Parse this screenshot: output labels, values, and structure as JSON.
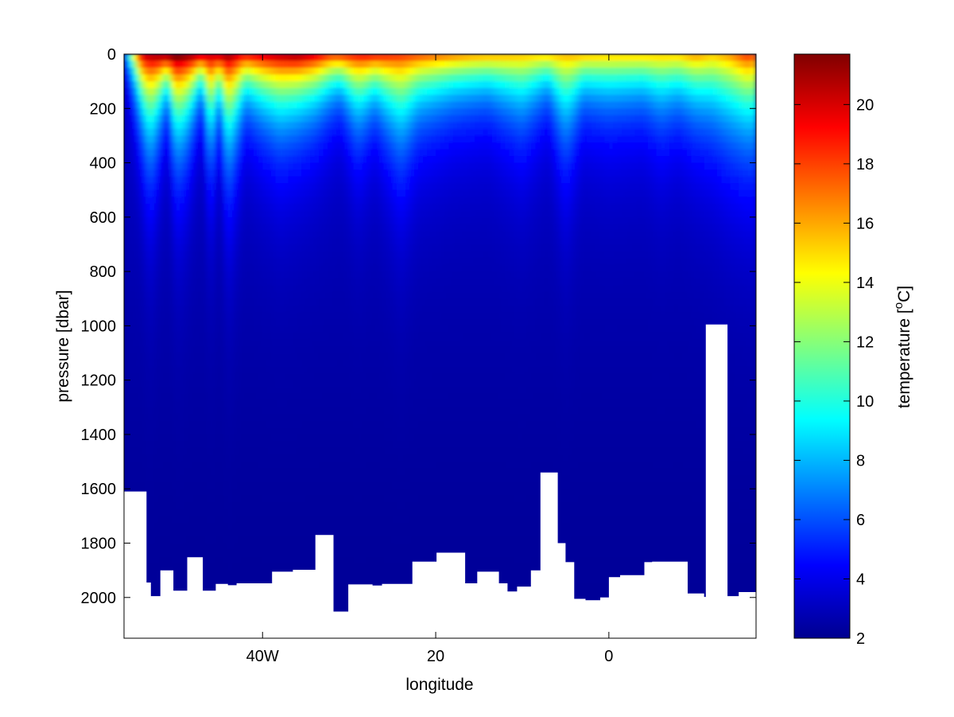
{
  "chart_data": [
    {
      "type": "heatmap",
      "kind": "filled-contour ocean section",
      "title": "",
      "xlabel": "longitude",
      "ylabel": "pressure [dbar]",
      "xlim": [
        -56,
        17
      ],
      "ylim": [
        2150,
        0
      ],
      "y_reversed": true,
      "grid": false,
      "colormap": "jet",
      "x_ticks": [
        {
          "value": -40,
          "label": "40W"
        },
        {
          "value": -20,
          "label": "20"
        },
        {
          "value": 0,
          "label": "0"
        }
      ],
      "y_ticks": [
        {
          "value": 0,
          "label": "0"
        },
        {
          "value": 200,
          "label": "200"
        },
        {
          "value": 400,
          "label": "400"
        },
        {
          "value": 600,
          "label": "600"
        },
        {
          "value": 800,
          "label": "800"
        },
        {
          "value": 1000,
          "label": "1000"
        },
        {
          "value": 1200,
          "label": "1200"
        },
        {
          "value": 1400,
          "label": "1400"
        },
        {
          "value": 1600,
          "label": "1600"
        },
        {
          "value": 1800,
          "label": "1800"
        },
        {
          "value": 2000,
          "label": "2000"
        }
      ],
      "surface_max_temperature": [
        [
          -56,
          5
        ],
        [
          -54,
          19
        ],
        [
          -52,
          20
        ],
        [
          -50,
          21
        ],
        [
          -48,
          20
        ],
        [
          -46,
          19
        ],
        [
          -44,
          20
        ],
        [
          -42,
          18
        ],
        [
          -40,
          19
        ],
        [
          -36,
          20
        ],
        [
          -34,
          19
        ],
        [
          -32,
          17
        ],
        [
          -28,
          18
        ],
        [
          -24,
          17
        ],
        [
          -20,
          16
        ],
        [
          -16,
          15
        ],
        [
          -12,
          14.5
        ],
        [
          -8,
          14
        ],
        [
          -4,
          14.5
        ],
        [
          0,
          14
        ],
        [
          4,
          14
        ],
        [
          8,
          14
        ],
        [
          10,
          15
        ],
        [
          12,
          14
        ],
        [
          14,
          15
        ],
        [
          16,
          17
        ],
        [
          17,
          16
        ]
      ],
      "thermocline_depth_dbar": [
        [
          -56,
          60
        ],
        [
          -54,
          300
        ],
        [
          -53,
          450
        ],
        [
          -51,
          180
        ],
        [
          -50,
          420
        ],
        [
          -49,
          380
        ],
        [
          -47,
          160
        ],
        [
          -46,
          440
        ],
        [
          -45,
          200
        ],
        [
          -44,
          480
        ],
        [
          -42,
          230
        ],
        [
          -40,
          290
        ],
        [
          -38,
          340
        ],
        [
          -34,
          280
        ],
        [
          -31,
          200
        ],
        [
          -29,
          330
        ],
        [
          -27,
          240
        ],
        [
          -24,
          420
        ],
        [
          -22,
          300
        ],
        [
          -18,
          250
        ],
        [
          -14,
          230
        ],
        [
          -10,
          330
        ],
        [
          -7,
          210
        ],
        [
          -5,
          420
        ],
        [
          -3,
          240
        ],
        [
          0,
          270
        ],
        [
          4,
          250
        ],
        [
          6,
          310
        ],
        [
          8,
          270
        ],
        [
          11,
          330
        ],
        [
          14,
          400
        ],
        [
          17,
          420
        ]
      ],
      "bottom_pressure_dbar": [
        [
          -56.0,
          1610
        ],
        [
          -53.4,
          1945
        ],
        [
          -52.9,
          1995
        ],
        [
          -51.8,
          1900
        ],
        [
          -50.3,
          1975
        ],
        [
          -48.7,
          1852
        ],
        [
          -46.9,
          1975
        ],
        [
          -45.4,
          1950
        ],
        [
          -44.0,
          1955
        ],
        [
          -43.0,
          1948
        ],
        [
          -38.9,
          1905
        ],
        [
          -36.5,
          1898
        ],
        [
          -33.9,
          1770
        ],
        [
          -31.8,
          2052
        ],
        [
          -30.1,
          1952
        ],
        [
          -28.8,
          1952
        ],
        [
          -27.3,
          1956
        ],
        [
          -26.2,
          1950
        ],
        [
          -22.7,
          1868
        ],
        [
          -20.6,
          1868
        ],
        [
          -19.9,
          1835
        ],
        [
          -16.6,
          1948
        ],
        [
          -15.2,
          1905
        ],
        [
          -12.7,
          1948
        ],
        [
          -11.7,
          1978
        ],
        [
          -10.6,
          1960
        ],
        [
          -9.0,
          1900
        ],
        [
          -7.9,
          1540
        ],
        [
          -5.9,
          1800
        ],
        [
          -5.0,
          1870
        ],
        [
          -4.0,
          2005
        ],
        [
          -2.7,
          2010
        ],
        [
          -1.0,
          2000
        ],
        [
          0.0,
          1925
        ],
        [
          1.3,
          1918
        ],
        [
          4.1,
          1870
        ],
        [
          5.0,
          1868
        ],
        [
          9.1,
          1985
        ],
        [
          11.0,
          1998
        ],
        [
          11.2,
          995
        ],
        [
          13.7,
          1995
        ],
        [
          15.0,
          1980
        ],
        [
          16.8,
          1980
        ],
        [
          17.0,
          1980
        ]
      ],
      "colorbar": {
        "label": "temperature [oC]",
        "label_base": "temperature [",
        "label_sup": "o",
        "label_unit": "C]",
        "range": [
          2,
          21.7
        ],
        "ticks": [
          "2",
          "4",
          "6",
          "8",
          "10",
          "12",
          "14",
          "16",
          "18",
          "20"
        ]
      }
    }
  ]
}
